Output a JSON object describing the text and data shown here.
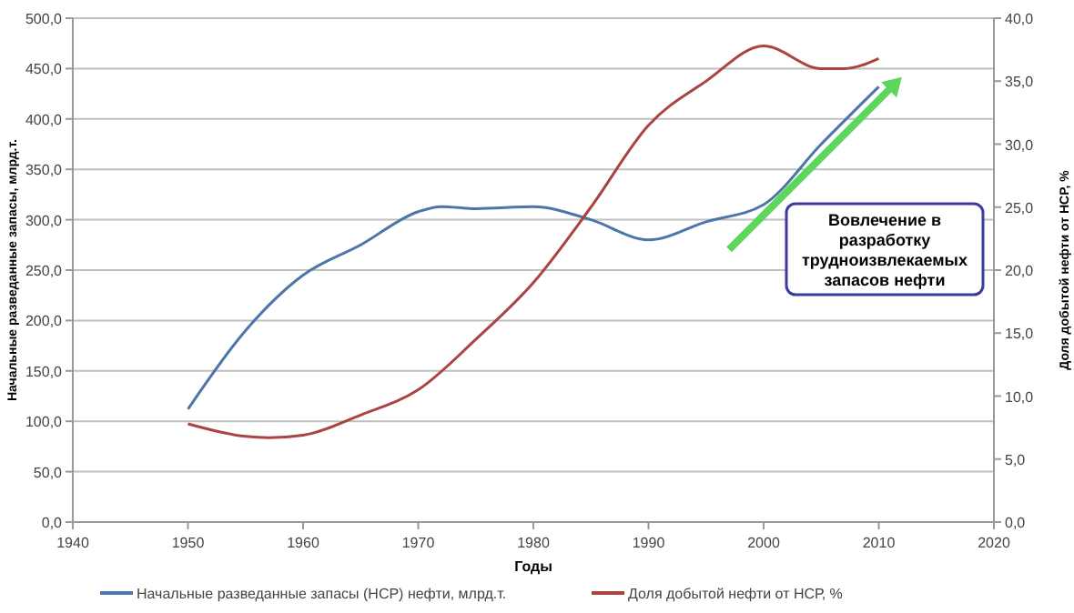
{
  "chart_data": {
    "type": "line",
    "xlabel": "Годы",
    "ylabel": "Начальные разведанные запасы, млрд.т.",
    "y2label": "Доля добытой нефти от НСР, %",
    "xlim": [
      1940,
      2020
    ],
    "xticks": [
      1940,
      1950,
      1960,
      1970,
      1980,
      1990,
      2000,
      2010,
      2020
    ],
    "ylim": [
      0,
      500
    ],
    "yticks": [
      {
        "value": 0,
        "label": "0,0"
      },
      {
        "value": 50,
        "label": "50,0"
      },
      {
        "value": 100,
        "label": "100,0"
      },
      {
        "value": 150,
        "label": "150,0"
      },
      {
        "value": 200,
        "label": "200,0"
      },
      {
        "value": 250,
        "label": "250,0"
      },
      {
        "value": 300,
        "label": "300,0"
      },
      {
        "value": 350,
        "label": "350,0"
      },
      {
        "value": 400,
        "label": "400,0"
      },
      {
        "value": 450,
        "label": "450,0"
      },
      {
        "value": 500,
        "label": "500,0"
      }
    ],
    "y2lim": [
      0,
      40
    ],
    "y2ticks": [
      {
        "value": 0,
        "label": "0,0"
      },
      {
        "value": 5,
        "label": "5,0"
      },
      {
        "value": 10,
        "label": "10,0"
      },
      {
        "value": 15,
        "label": "15,0"
      },
      {
        "value": 20,
        "label": "20,0"
      },
      {
        "value": 25,
        "label": "25,0"
      },
      {
        "value": 30,
        "label": "30,0"
      },
      {
        "value": 35,
        "label": "35,0"
      },
      {
        "value": 40,
        "label": "40,0"
      }
    ],
    "grid": "y",
    "legend": "bottom",
    "line_style": "solid",
    "marker": "none",
    "series": [
      {
        "name": "Начальные разведанные запасы (НСР) нефти, млрд.т.",
        "color": "#4a76a8",
        "x": [
          1950,
          1955,
          1960,
          1965,
          1970,
          1972,
          1975,
          1980,
          1985,
          1990,
          1995,
          2000,
          2005,
          2010
        ],
        "values": [
          112,
          190,
          245,
          275,
          308,
          313,
          311,
          313,
          300,
          280,
          298,
          315,
          375,
          432
        ]
      },
      {
        "name": "Доля добытой нефти от НСР, %",
        "color": "#a94442",
        "axis": "y2",
        "x": [
          1950,
          1955,
          1957,
          1960,
          1965,
          1970,
          1975,
          1980,
          1985,
          1990,
          1995,
          2000,
          2005,
          2007,
          2010
        ],
        "values": [
          7.8,
          6.8,
          6.7,
          6.9,
          8.5,
          10.5,
          14.5,
          19,
          25,
          31.5,
          35,
          37.8,
          36,
          36,
          36.8
        ]
      }
    ],
    "annotations": [
      "Вовлечение в разработку трудноизвлекаемых запасов нефти"
    ]
  }
}
